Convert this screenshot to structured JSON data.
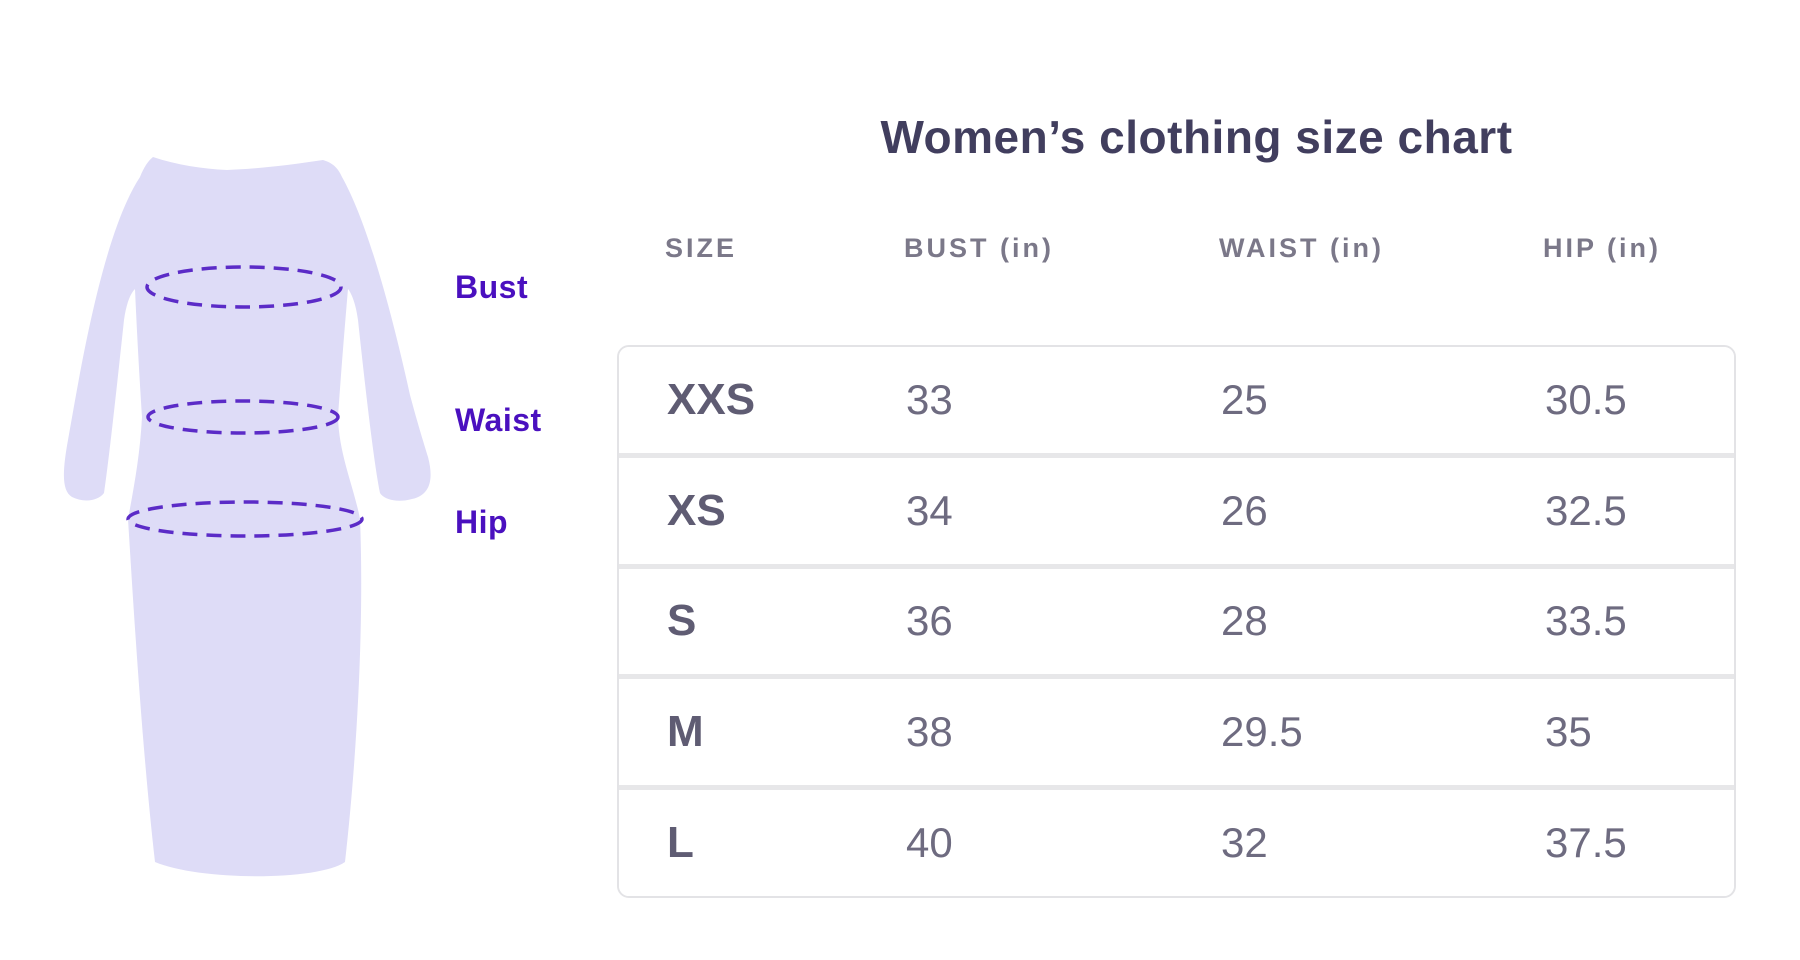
{
  "header": {
    "title": "Women’s clothing size chart"
  },
  "figure": {
    "labels": [
      {
        "text": "Bust"
      },
      {
        "text": "Waist"
      },
      {
        "text": "Hip"
      }
    ],
    "colors": {
      "dress_fill": "#dedcf7",
      "measure_line": "#5b2bc7",
      "label_text": "#4a10bf"
    }
  },
  "chart_data": {
    "type": "table",
    "title": "Women’s clothing size chart",
    "columns": [
      "SIZE",
      "BUST (in)",
      "WAIST (in)",
      "HIP (in)"
    ],
    "rows": [
      {
        "size": "XXS",
        "bust": "33",
        "waist": "25",
        "hip": "30.5"
      },
      {
        "size": "XS",
        "bust": "34",
        "waist": "26",
        "hip": "32.5"
      },
      {
        "size": "S",
        "bust": "36",
        "waist": "28",
        "hip": "33.5"
      },
      {
        "size": "M",
        "bust": "38",
        "waist": "29.5",
        "hip": "35"
      },
      {
        "size": "L",
        "bust": "40",
        "waist": "32",
        "hip": "37.5"
      }
    ]
  },
  "colors": {
    "title_text": "#413e5e",
    "column_header_text": "#7b7889",
    "cell_text": "#6e6b80",
    "table_border": "#e3e3e6",
    "row_divider": "#e7e7e9",
    "background": "#ffffff"
  }
}
